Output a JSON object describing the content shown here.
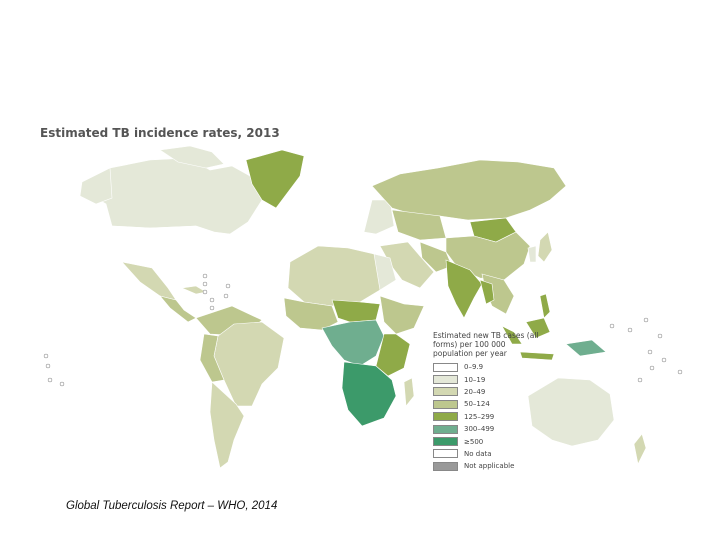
{
  "map": {
    "title": "Estimated TB incidence rates, 2013",
    "legend_title": "Estimated new TB cases (all forms) per 100 000 population per year",
    "legend": [
      {
        "label": "0–9.9",
        "color": "#ffffff"
      },
      {
        "label": "10–19",
        "color": "#e4e8d8"
      },
      {
        "label": "20–49",
        "color": "#d3d8b2"
      },
      {
        "label": "50–124",
        "color": "#bdc78e"
      },
      {
        "label": "125–299",
        "color": "#8faa48"
      },
      {
        "label": "300–499",
        "color": "#6fae8f"
      },
      {
        "label": "≥500",
        "color": "#3c9a6a"
      },
      {
        "label": "No data",
        "color": "#ffffff"
      },
      {
        "label": "Not applicable",
        "color": "#999999"
      }
    ]
  },
  "source": "Global Tuberculosis Report – WHO, 2014"
}
